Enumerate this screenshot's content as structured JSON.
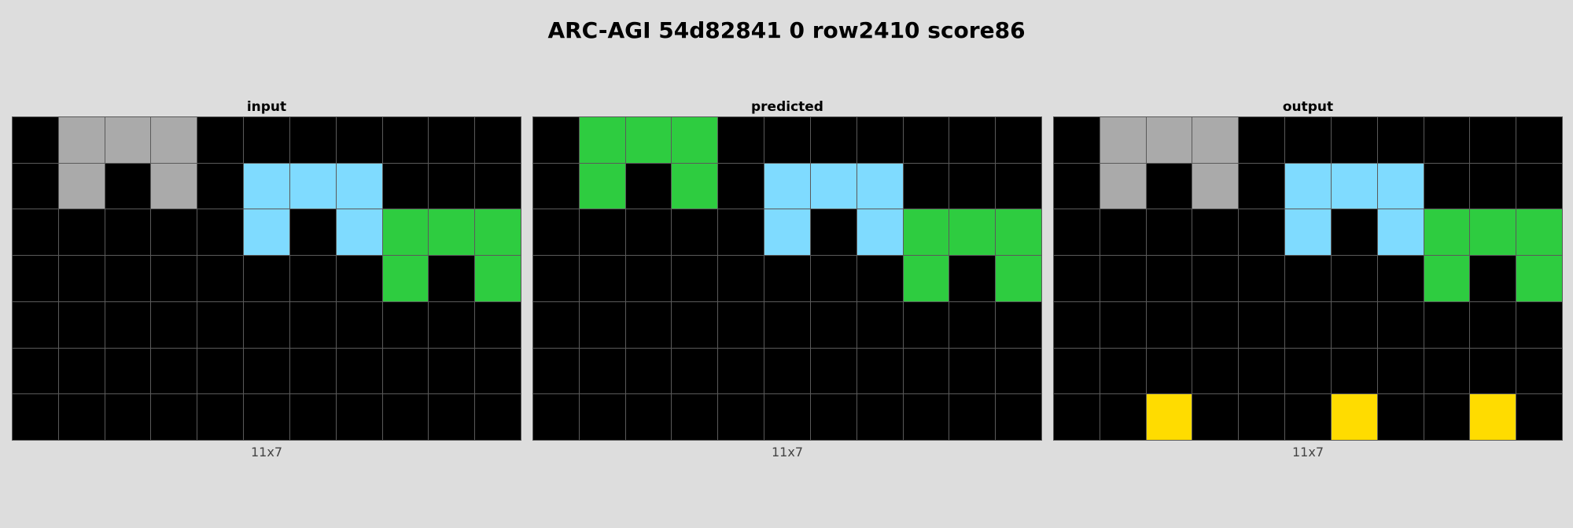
{
  "title": "ARC-AGI 54d82841 0 row2410 score86",
  "palette": {
    "0": "#000000",
    "3": "#2ecc40",
    "4": "#ffdc00",
    "5": "#aaaaaa",
    "8": "#7fdbff"
  },
  "panels": [
    {
      "label": "input",
      "caption": "11x7",
      "grid": [
        [
          0,
          5,
          5,
          5,
          0,
          0,
          0,
          0,
          0,
          0,
          0
        ],
        [
          0,
          5,
          0,
          5,
          0,
          8,
          8,
          8,
          0,
          0,
          0
        ],
        [
          0,
          0,
          0,
          0,
          0,
          8,
          0,
          8,
          3,
          3,
          3
        ],
        [
          0,
          0,
          0,
          0,
          0,
          0,
          0,
          0,
          3,
          0,
          3
        ],
        [
          0,
          0,
          0,
          0,
          0,
          0,
          0,
          0,
          0,
          0,
          0
        ],
        [
          0,
          0,
          0,
          0,
          0,
          0,
          0,
          0,
          0,
          0,
          0
        ],
        [
          0,
          0,
          0,
          0,
          0,
          0,
          0,
          0,
          0,
          0,
          0
        ]
      ]
    },
    {
      "label": "predicted",
      "caption": "11x7",
      "grid": [
        [
          0,
          3,
          3,
          3,
          0,
          0,
          0,
          0,
          0,
          0,
          0
        ],
        [
          0,
          3,
          0,
          3,
          0,
          8,
          8,
          8,
          0,
          0,
          0
        ],
        [
          0,
          0,
          0,
          0,
          0,
          8,
          0,
          8,
          3,
          3,
          3
        ],
        [
          0,
          0,
          0,
          0,
          0,
          0,
          0,
          0,
          3,
          0,
          3
        ],
        [
          0,
          0,
          0,
          0,
          0,
          0,
          0,
          0,
          0,
          0,
          0
        ],
        [
          0,
          0,
          0,
          0,
          0,
          0,
          0,
          0,
          0,
          0,
          0
        ],
        [
          0,
          0,
          0,
          0,
          0,
          0,
          0,
          0,
          0,
          0,
          0
        ]
      ]
    },
    {
      "label": "output",
      "caption": "11x7",
      "grid": [
        [
          0,
          5,
          5,
          5,
          0,
          0,
          0,
          0,
          0,
          0,
          0
        ],
        [
          0,
          5,
          0,
          5,
          0,
          8,
          8,
          8,
          0,
          0,
          0
        ],
        [
          0,
          0,
          0,
          0,
          0,
          8,
          0,
          8,
          3,
          3,
          3
        ],
        [
          0,
          0,
          0,
          0,
          0,
          0,
          0,
          0,
          3,
          0,
          3
        ],
        [
          0,
          0,
          0,
          0,
          0,
          0,
          0,
          0,
          0,
          0,
          0
        ],
        [
          0,
          0,
          0,
          0,
          0,
          0,
          0,
          0,
          0,
          0,
          0
        ],
        [
          0,
          0,
          4,
          0,
          0,
          0,
          4,
          0,
          0,
          4,
          0
        ]
      ]
    }
  ]
}
